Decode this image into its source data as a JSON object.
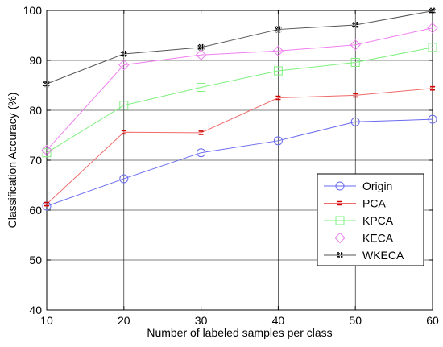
{
  "chart_data": {
    "type": "line",
    "xlabel": "Number of labeled samples per class",
    "ylabel": "Classification Accuracy (%)",
    "xlim": [
      10,
      60
    ],
    "ylim": [
      40,
      100
    ],
    "x": [
      10,
      20,
      30,
      40,
      50,
      60
    ],
    "xticks": [
      "10",
      "20",
      "30",
      "40",
      "50",
      "60"
    ],
    "yticks": [
      "40",
      "50",
      "60",
      "70",
      "80",
      "90",
      "100"
    ],
    "grid": true,
    "legend_position": "lower-right",
    "series": [
      {
        "name": "Origin",
        "marker": "circle",
        "color": "#6a6af0",
        "values": [
          60.8,
          66.3,
          71.5,
          73.9,
          77.7,
          78.2
        ]
      },
      {
        "name": "PCA",
        "marker": "star",
        "color": "#f06a6a",
        "values": [
          61.2,
          75.6,
          75.5,
          82.5,
          83.0,
          84.4
        ]
      },
      {
        "name": "KPCA",
        "marker": "square",
        "color": "#7ef07e",
        "values": [
          71.5,
          81.0,
          84.6,
          87.9,
          89.6,
          92.6
        ]
      },
      {
        "name": "KECA",
        "marker": "diamond",
        "color": "#f07ef0",
        "values": [
          72.0,
          89.1,
          91.1,
          91.9,
          93.1,
          96.5
        ]
      },
      {
        "name": "WKECA",
        "marker": "star-dark",
        "color": "#555555",
        "values": [
          85.3,
          91.3,
          92.6,
          96.2,
          97.1,
          99.9
        ]
      }
    ]
  }
}
